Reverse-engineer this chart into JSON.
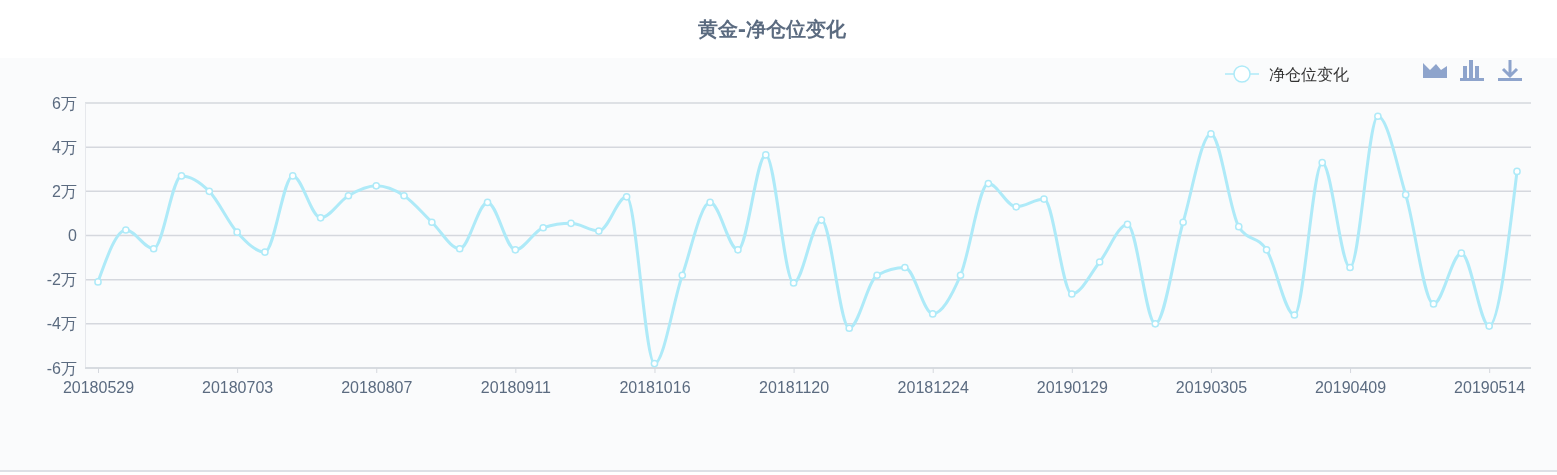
{
  "chart_data": {
    "type": "line",
    "title": "黄金-净仓位变化",
    "categories": [
      "20180529",
      null,
      null,
      null,
      null,
      "20180703",
      null,
      null,
      null,
      null,
      "20180807",
      null,
      null,
      null,
      null,
      "20180911",
      null,
      null,
      null,
      null,
      "20181016",
      null,
      null,
      null,
      null,
      "20181120",
      null,
      null,
      null,
      null,
      "20181224",
      null,
      null,
      null,
      null,
      "20190129",
      null,
      null,
      null,
      null,
      "20190305",
      null,
      null,
      null,
      null,
      "20190409",
      null,
      null,
      null,
      null,
      "20190514",
      null
    ],
    "series": [
      {
        "name": "净仓位变化",
        "color": "#aeeaf8",
        "values": [
          -2.1,
          0.25,
          -0.6,
          2.7,
          2.0,
          0.15,
          -0.75,
          2.7,
          0.8,
          1.8,
          2.25,
          1.8,
          0.6,
          -0.6,
          1.5,
          -0.65,
          0.35,
          0.55,
          0.2,
          1.75,
          -5.8,
          -1.8,
          1.5,
          -0.65,
          3.65,
          -2.15,
          0.7,
          -4.2,
          -1.8,
          -1.45,
          -3.55,
          -1.8,
          2.35,
          1.3,
          1.65,
          -2.65,
          -1.2,
          0.5,
          -4.0,
          0.6,
          4.6,
          0.4,
          -0.65,
          -3.6,
          3.3,
          -1.45,
          5.4,
          1.85,
          -3.1,
          -0.8,
          -4.1,
          2.9
        ]
      }
    ],
    "ylim": [
      -6,
      6
    ],
    "yticks": [
      {
        "value": -6,
        "label": "-6万"
      },
      {
        "value": -4,
        "label": "-4万"
      },
      {
        "value": -2,
        "label": "-2万"
      },
      0,
      {
        "value": 2,
        "label": "2万"
      },
      {
        "value": 4,
        "label": "4万"
      },
      {
        "value": 6,
        "label": "6万"
      }
    ],
    "grid": "y",
    "legend": "top right",
    "marker": "circle",
    "line_style": "solid"
  }
}
